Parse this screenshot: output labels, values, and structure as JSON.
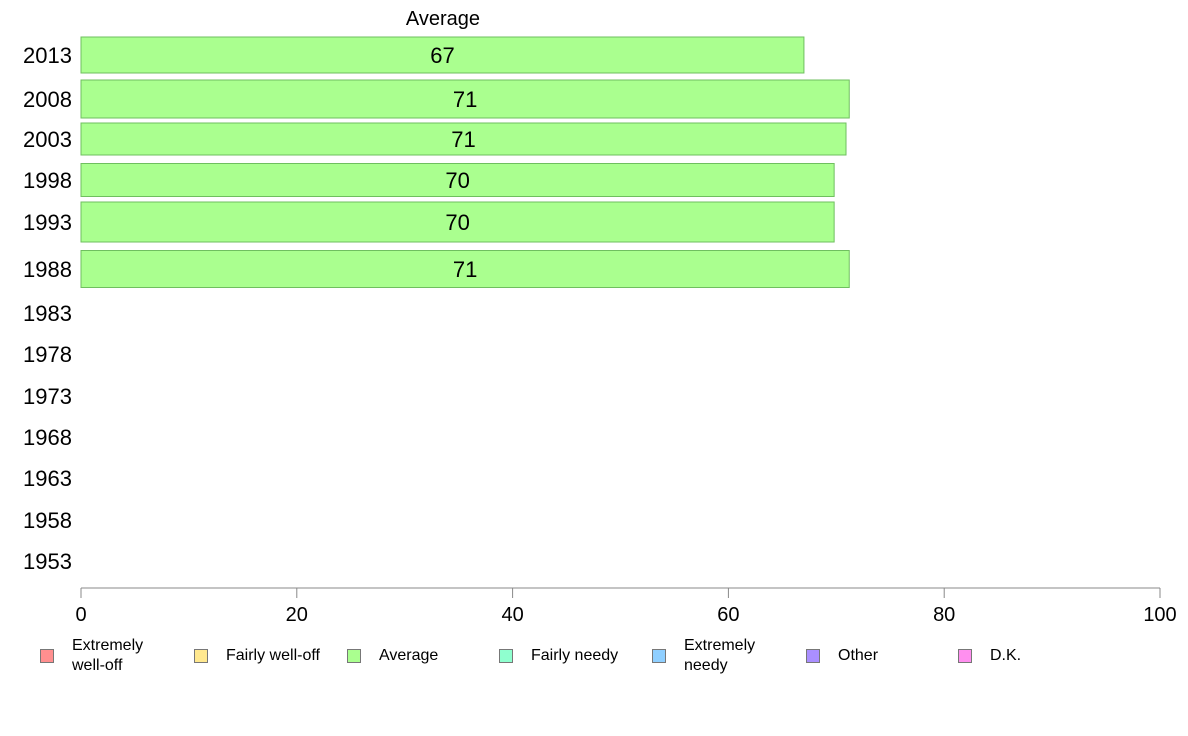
{
  "chart_data": {
    "type": "bar",
    "orientation": "horizontal",
    "title": "Average",
    "categories": [
      "2013",
      "2008",
      "2003",
      "1998",
      "1993",
      "1988",
      "1983",
      "1978",
      "1973",
      "1968",
      "1963",
      "1958",
      "1953"
    ],
    "series": [
      {
        "name": "Average",
        "color": "#aaff8f",
        "values": [
          67.0,
          71.2,
          70.9,
          69.8,
          69.8,
          71.2,
          null,
          null,
          null,
          null,
          null,
          null,
          null
        ],
        "labels": [
          "67",
          "71",
          "71",
          "70",
          "70",
          "71",
          "",
          "",
          "",
          "",
          "",
          "",
          ""
        ]
      }
    ],
    "xlim": [
      0,
      100
    ],
    "xticks": [
      "0",
      "20",
      "40",
      "60",
      "80",
      "100"
    ],
    "grid": false,
    "legend": {
      "position": "bottom",
      "items": [
        {
          "label": "Extremely\nwell-off",
          "color": "#ff8f8f"
        },
        {
          "label": "Fairly well-off",
          "color": "#ffe88f"
        },
        {
          "label": "Average",
          "color": "#aaff8f"
        },
        {
          "label": "Fairly needy",
          "color": "#8fffcf"
        },
        {
          "label": "Extremely\nneedy",
          "color": "#8fcfff"
        },
        {
          "label": "Other",
          "color": "#aa8fff"
        },
        {
          "label": "D.K.",
          "color": "#ff8fef"
        }
      ]
    }
  }
}
